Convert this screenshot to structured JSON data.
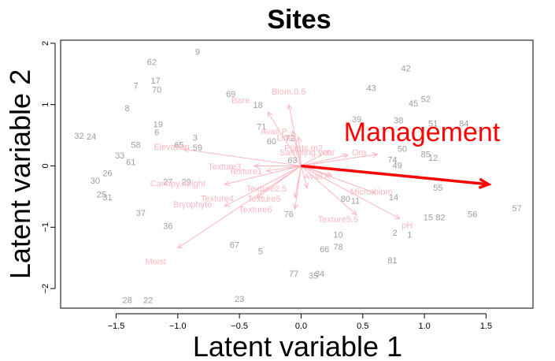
{
  "chart_data": {
    "type": "scatter",
    "title": "Sites",
    "xlabel": "Latent variable 1",
    "ylabel": "Latent variable 2",
    "xlim": [
      -1.95,
      1.88
    ],
    "ylim": [
      -2.32,
      2.05
    ],
    "xticks": [
      -1.5,
      -1.0,
      -0.5,
      0.0,
      0.5,
      1.0,
      1.5
    ],
    "xtick_labels": [
      "−1.5",
      "−1.0",
      "−0.5",
      "0.0",
      "0.5",
      "1.0",
      "1.5"
    ],
    "yticks": [
      -2,
      -1,
      0,
      1,
      2
    ],
    "ytick_labels": [
      "−2",
      "−1",
      "0",
      "1",
      "2"
    ],
    "colors": {
      "sites": "#9e9e9e",
      "variables": "#ffb6c1",
      "highlight": "#ff0000"
    },
    "sites": [
      {
        "label": "9",
        "x": -0.84,
        "y": 1.85
      },
      {
        "label": "42",
        "x": 0.85,
        "y": 1.58
      },
      {
        "label": "62",
        "x": -1.21,
        "y": 1.68
      },
      {
        "label": "17",
        "x": -1.18,
        "y": 1.38
      },
      {
        "label": "7",
        "x": -1.34,
        "y": 1.3
      },
      {
        "label": "70",
        "x": -1.17,
        "y": 1.23
      },
      {
        "label": "43",
        "x": 0.57,
        "y": 1.26
      },
      {
        "label": "69",
        "x": -0.57,
        "y": 1.16
      },
      {
        "label": "52",
        "x": 1.01,
        "y": 1.08
      },
      {
        "label": "45",
        "x": 0.91,
        "y": 1.01
      },
      {
        "label": "8",
        "x": -1.41,
        "y": 0.93
      },
      {
        "label": "18",
        "x": -0.35,
        "y": 0.98
      },
      {
        "label": "39",
        "x": 0.45,
        "y": 0.75
      },
      {
        "label": "38",
        "x": 0.79,
        "y": 0.73
      },
      {
        "label": "51",
        "x": 1.07,
        "y": 0.68
      },
      {
        "label": "84",
        "x": 1.32,
        "y": 0.68
      },
      {
        "label": "19",
        "x": -1.16,
        "y": 0.67
      },
      {
        "label": "71",
        "x": -0.32,
        "y": 0.63
      },
      {
        "label": "6",
        "x": -1.17,
        "y": 0.54
      },
      {
        "label": "32",
        "x": -1.8,
        "y": 0.48
      },
      {
        "label": "24",
        "x": -1.7,
        "y": 0.47
      },
      {
        "label": "3",
        "x": -0.86,
        "y": 0.45
      },
      {
        "label": "58",
        "x": -1.34,
        "y": 0.33
      },
      {
        "label": "65",
        "x": -0.99,
        "y": 0.33
      },
      {
        "label": "59",
        "x": -0.84,
        "y": 0.29
      },
      {
        "label": "50",
        "x": 0.82,
        "y": 0.27
      },
      {
        "label": "60",
        "x": -0.24,
        "y": 0.39
      },
      {
        "label": "72",
        "x": -0.09,
        "y": 0.44
      },
      {
        "label": "33",
        "x": -1.47,
        "y": 0.16
      },
      {
        "label": "61",
        "x": -1.38,
        "y": 0.05
      },
      {
        "label": "85",
        "x": 1.01,
        "y": 0.18
      },
      {
        "label": "12",
        "x": 1.07,
        "y": 0.12
      },
      {
        "label": "74",
        "x": 0.74,
        "y": 0.09
      },
      {
        "label": "49",
        "x": 0.78,
        "y": 0.0
      },
      {
        "label": "63",
        "x": -0.07,
        "y": 0.08
      },
      {
        "label": "26",
        "x": -1.57,
        "y": -0.13
      },
      {
        "label": "30",
        "x": -1.67,
        "y": -0.25
      },
      {
        "label": "27",
        "x": -1.08,
        "y": -0.27
      },
      {
        "label": "29",
        "x": -0.93,
        "y": -0.27
      },
      {
        "label": "55",
        "x": 1.11,
        "y": -0.37
      },
      {
        "label": "25",
        "x": -1.62,
        "y": -0.48
      },
      {
        "label": "31",
        "x": -1.57,
        "y": -0.52
      },
      {
        "label": "14",
        "x": 0.75,
        "y": -0.52
      },
      {
        "label": "80",
        "x": 0.36,
        "y": -0.55
      },
      {
        "label": "11",
        "x": 0.44,
        "y": -0.58
      },
      {
        "label": "56",
        "x": 1.39,
        "y": -0.8
      },
      {
        "label": "57",
        "x": 1.75,
        "y": -0.7
      },
      {
        "label": "15",
        "x": 1.03,
        "y": -0.85
      },
      {
        "label": "82",
        "x": 1.13,
        "y": -0.85
      },
      {
        "label": "76",
        "x": -0.1,
        "y": -0.8
      },
      {
        "label": "37",
        "x": -1.3,
        "y": -0.78
      },
      {
        "label": "36",
        "x": -1.08,
        "y": -0.99
      },
      {
        "label": "2",
        "x": 0.76,
        "y": -1.1
      },
      {
        "label": "1",
        "x": 0.88,
        "y": -1.13
      },
      {
        "label": "10",
        "x": 0.3,
        "y": -1.13
      },
      {
        "label": "67",
        "x": -0.54,
        "y": -1.3
      },
      {
        "label": "66",
        "x": 0.19,
        "y": -1.37
      },
      {
        "label": "78",
        "x": 0.3,
        "y": -1.33
      },
      {
        "label": "5",
        "x": -0.33,
        "y": -1.4
      },
      {
        "label": "81",
        "x": 0.74,
        "y": -1.55
      },
      {
        "label": "77",
        "x": -0.06,
        "y": -1.77
      },
      {
        "label": "35",
        "x": 0.1,
        "y": -1.8
      },
      {
        "label": "34",
        "x": 0.15,
        "y": -1.77
      },
      {
        "label": "28",
        "x": -1.41,
        "y": -2.2
      },
      {
        "label": "22",
        "x": -1.24,
        "y": -2.2
      },
      {
        "label": "23",
        "x": -0.5,
        "y": -2.18
      }
    ],
    "variables": [
      {
        "label": "Biom.0.5",
        "x": -0.1,
        "y": 1.0,
        "lx": -0.1,
        "ly": 1.2
      },
      {
        "label": "Bare",
        "x": -0.27,
        "y": 0.88,
        "lx": -0.49,
        "ly": 1.06
      },
      {
        "label": "Avail.P",
        "x": -0.07,
        "y": 0.57,
        "lx": -0.22,
        "ly": 0.55
      },
      {
        "label": "Litter",
        "x": -0.02,
        "y": 0.47,
        "lx": -0.12,
        "ly": 0.45
      },
      {
        "label": "Plants.m2",
        "x": 0.23,
        "y": 0.25,
        "lx": 0.02,
        "ly": 0.28
      },
      {
        "label": "Sampling.year",
        "x": 0.38,
        "y": 0.18,
        "lx": 0.05,
        "ly": 0.21
      },
      {
        "label": "Org",
        "x": 0.62,
        "y": 0.19,
        "lx": 0.47,
        "ly": 0.21
      },
      {
        "label": "Elevation",
        "x": -0.95,
        "y": 0.27,
        "lx": -1.05,
        "ly": 0.3
      },
      {
        "label": "Texture3",
        "x": -0.38,
        "y": 0.0,
        "lx": -0.62,
        "ly": -0.02
      },
      {
        "label": "Texture1",
        "x": -0.28,
        "y": -0.08,
        "lx": -0.45,
        "ly": -0.1
      },
      {
        "label": "Canopy.height",
        "x": -0.62,
        "y": -0.3,
        "lx": -1.0,
        "ly": -0.3
      },
      {
        "label": "Bryophyte",
        "x": -0.62,
        "y": -0.66,
        "lx": -0.88,
        "ly": -0.64
      },
      {
        "label": "Texture4",
        "x": -0.36,
        "y": -0.52,
        "lx": -0.68,
        "ly": -0.54
      },
      {
        "label": "Texture5",
        "x": -0.05,
        "y": -0.52,
        "lx": -0.3,
        "ly": -0.55
      },
      {
        "label": "Texture6",
        "x": -0.05,
        "y": -0.7,
        "lx": -0.37,
        "ly": -0.72
      },
      {
        "label": "Texture2.5",
        "x": 0.05,
        "y": -0.36,
        "lx": -0.28,
        "ly": -0.38
      },
      {
        "label": "Texture5.5",
        "x": 0.45,
        "y": -0.8,
        "lx": 0.3,
        "ly": -0.88
      },
      {
        "label": "Micro.biom",
        "x": 0.6,
        "y": -0.44,
        "lx": 0.57,
        "ly": -0.43
      },
      {
        "label": "pH",
        "x": 0.8,
        "y": -0.86,
        "lx": 0.86,
        "ly": -0.98
      },
      {
        "label": "Moist",
        "x": -1.0,
        "y": -1.34,
        "lx": -1.18,
        "ly": -1.57
      },
      {
        "label": "Avail.K",
        "x": 0.25,
        "y": -0.16,
        "lx": 0.13,
        "ly": -0.18
      }
    ],
    "highlight": {
      "label": "Management",
      "x": 1.52,
      "y": -0.3,
      "lx": 0.98,
      "ly": 0.52
    }
  }
}
